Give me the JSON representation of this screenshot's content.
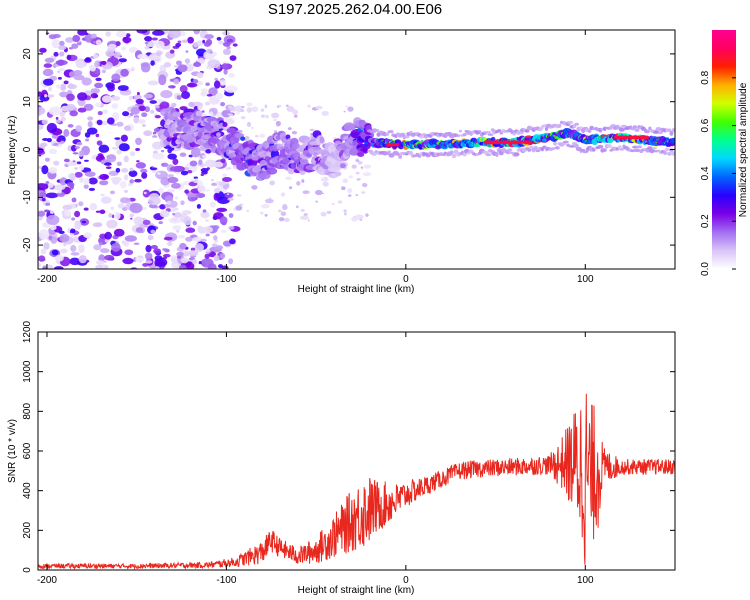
{
  "title": "S197.2025.262.04.00.E06",
  "chart_data": [
    {
      "type": "heatmap",
      "name": "spectrogram",
      "xlabel": "Height of straight line (km)",
      "ylabel": "Frequency (Hz)",
      "xlim": [
        -205,
        150
      ],
      "ylim": [
        -25,
        25
      ],
      "xticks": [
        -200,
        -100,
        0,
        100
      ],
      "xtick_labels": [
        "-200",
        "-100",
        "0",
        "100"
      ],
      "yticks": [
        -20,
        -10,
        0,
        10,
        20
      ],
      "ytick_labels": [
        "-20",
        "-10",
        "0",
        "10",
        "20"
      ],
      "colorbar": {
        "label": "Normalized spectral amplitude",
        "range": [
          0,
          1
        ],
        "ticks": [
          0.0,
          0.2,
          0.4,
          0.6,
          0.8
        ],
        "tick_labels": [
          "0.0",
          "0.2",
          "0.4",
          "0.6",
          "0.8"
        ],
        "colors": [
          "#ffffff",
          "#d9c4f7",
          "#a36ef2",
          "#7a00e6",
          "#2a00ff",
          "#0064ff",
          "#00d8ff",
          "#00ff90",
          "#40ff00",
          "#d0ff00",
          "#ffb000",
          "#ff2000",
          "#ff0060",
          "#ff0090"
        ]
      },
      "ridge": {
        "description_points_x": [
          -130,
          -110,
          -100,
          -90,
          -80,
          -70,
          -60,
          -50,
          -40,
          -30,
          -20,
          0,
          20,
          40,
          60,
          80,
          90,
          100,
          120,
          150
        ],
        "description_points_freq": [
          4.5,
          4,
          2,
          -1,
          -3,
          0,
          -2,
          0,
          -3,
          3,
          1.5,
          1,
          1,
          1.5,
          1.5,
          2.5,
          3.5,
          2,
          2.5,
          1.5
        ],
        "description_points_amp": [
          0.25,
          0.3,
          0.3,
          0.35,
          0.3,
          0.3,
          0.3,
          0.25,
          0.2,
          0.3,
          0.5,
          0.75,
          0.7,
          0.9,
          0.95,
          0.8,
          0.6,
          0.7,
          0.95,
          0.6
        ]
      }
    },
    {
      "type": "line",
      "name": "snr",
      "xlabel": "Height of straight line (km)",
      "ylabel": "SNR (10 * v/v)",
      "xlim": [
        -205,
        150
      ],
      "ylim": [
        0,
        1200
      ],
      "xticks": [
        -200,
        -100,
        0,
        100
      ],
      "xtick_labels": [
        "-200",
        "-100",
        "0",
        "100"
      ],
      "yticks": [
        0,
        200,
        400,
        600,
        800,
        1000,
        1200
      ],
      "ytick_labels": [
        "0",
        "200",
        "400",
        "600",
        "800",
        "1000",
        "1200"
      ],
      "color": "#e8281e",
      "envelope": {
        "x": [
          -205,
          -150,
          -110,
          -95,
          -80,
          -75,
          -70,
          -60,
          -50,
          -40,
          -30,
          -22,
          -15,
          -5,
          0,
          10,
          20,
          30,
          40,
          60,
          80,
          88,
          95,
          100,
          103,
          107,
          110,
          120,
          150
        ],
        "mean": [
          20,
          20,
          25,
          40,
          90,
          150,
          110,
          70,
          100,
          170,
          250,
          300,
          320,
          350,
          380,
          420,
          460,
          500,
          510,
          520,
          530,
          540,
          540,
          500,
          470,
          510,
          520,
          520,
          520
        ],
        "amp": [
          12,
          12,
          15,
          25,
          60,
          60,
          50,
          45,
          70,
          110,
          160,
          190,
          130,
          90,
          70,
          50,
          45,
          45,
          45,
          45,
          50,
          150,
          300,
          500,
          380,
          320,
          100,
          40,
          40
        ]
      }
    }
  ]
}
